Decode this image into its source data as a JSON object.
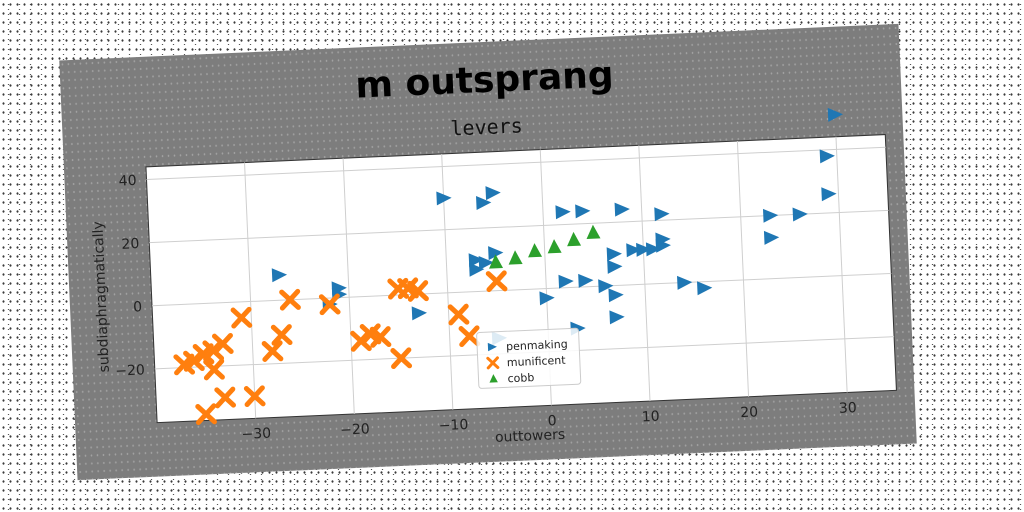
{
  "figure": {
    "suptitle": "m outsprang"
  },
  "chart_data": {
    "type": "scatter",
    "title": "levers",
    "xlabel": "outtowers",
    "ylabel": "subdiaphragmatically",
    "xlim": [
      -40,
      35
    ],
    "ylim": [
      -37,
      44
    ],
    "xticks": [
      -30,
      -20,
      -10,
      0,
      10,
      20,
      30
    ],
    "yticks": [
      -20,
      0,
      20,
      40
    ],
    "grid": true,
    "legend_position": "lower-center",
    "series": [
      {
        "name": "penmaking",
        "marker": "triangle-right",
        "color": "#1f77b4",
        "points": [
          [
            -27,
            8
          ],
          [
            -21,
            3
          ],
          [
            -21,
            1
          ],
          [
            -22,
            -2
          ],
          [
            -13,
            -6
          ],
          [
            -10,
            30
          ],
          [
            -5,
            31
          ],
          [
            -6,
            28
          ],
          [
            -5,
            12
          ],
          [
            -6,
            9
          ],
          [
            -7,
            10
          ],
          [
            -7,
            7
          ],
          [
            -5,
            -15
          ],
          [
            0,
            -3
          ],
          [
            2,
            24
          ],
          [
            2,
            2
          ],
          [
            4,
            2
          ],
          [
            3,
            -13
          ],
          [
            4,
            24
          ],
          [
            6,
            0
          ],
          [
            7,
            10
          ],
          [
            7,
            6
          ],
          [
            7,
            -3
          ],
          [
            7,
            -10
          ],
          [
            8,
            24
          ],
          [
            9,
            11
          ],
          [
            10,
            11
          ],
          [
            11,
            11
          ],
          [
            12,
            22
          ],
          [
            12,
            12
          ],
          [
            12,
            14
          ],
          [
            14,
            0
          ],
          [
            16,
            -2
          ],
          [
            23,
            20
          ],
          [
            23,
            13
          ],
          [
            26,
            20
          ],
          [
            29,
            26
          ],
          [
            29,
            38
          ],
          [
            30,
            51
          ]
        ]
      },
      {
        "name": "munificent",
        "marker": "x",
        "color": "#ff7f0e",
        "points": [
          [
            -37,
            -19
          ],
          [
            -36,
            -18
          ],
          [
            -35,
            -16
          ],
          [
            -34,
            -15
          ],
          [
            -33,
            -13
          ],
          [
            -34,
            -21
          ],
          [
            -35,
            -35
          ],
          [
            -33,
            -30
          ],
          [
            -30,
            -30
          ],
          [
            -31,
            -5
          ],
          [
            -28,
            -16
          ],
          [
            -27,
            -11
          ],
          [
            -26,
            0
          ],
          [
            -22,
            -2
          ],
          [
            -19,
            -14
          ],
          [
            -18,
            -12
          ],
          [
            -17,
            -13
          ],
          [
            -15,
            -20
          ],
          [
            -15,
            2
          ],
          [
            -14,
            2
          ],
          [
            -13,
            1
          ],
          [
            -9,
            -7
          ],
          [
            -8,
            -14
          ],
          [
            -5,
            3
          ]
        ]
      },
      {
        "name": "cobb",
        "marker": "triangle-up",
        "color": "#2ca02c",
        "points": [
          [
            -5,
            9
          ],
          [
            -3,
            10
          ],
          [
            -1,
            12
          ],
          [
            1,
            13
          ],
          [
            3,
            15
          ],
          [
            5,
            17
          ]
        ]
      }
    ]
  }
}
